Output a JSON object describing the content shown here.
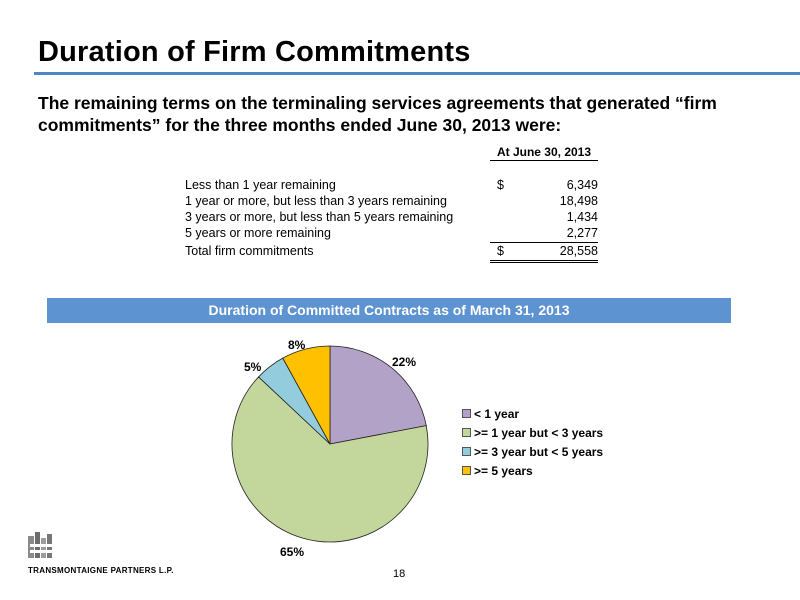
{
  "title": "Duration of Firm Commitments",
  "intro": "The remaining terms on the terminaling services agreements that generated “firm commitments” for the three months ended June 30, 2013 were:",
  "table": {
    "column_header": "At June 30, 2013",
    "rows": [
      {
        "label": "Less than 1 year remaining",
        "currency": "$",
        "value": "6,349"
      },
      {
        "label": "1 year or more, but less than 3 years remaining",
        "currency": "",
        "value": "18,498"
      },
      {
        "label": "3 years or more, but less than 5 years remaining",
        "currency": "",
        "value": "1,434"
      },
      {
        "label": "5 years or more remaining",
        "currency": "",
        "value": "2,277"
      },
      {
        "label": "Total firm commitments",
        "currency": "$",
        "value": "28,558"
      }
    ]
  },
  "chart_banner": "Duration of Committed Contracts as of  March 31, 2013",
  "chart_data": {
    "type": "pie",
    "categories": [
      "< 1 year",
      ">= 1 year but < 3 years",
      ">= 3 year but < 5 years",
      ">= 5 years"
    ],
    "values": [
      22,
      65,
      5,
      8
    ],
    "data_labels": [
      "22%",
      "65%",
      "5%",
      "8%"
    ],
    "colors": [
      "#b3a2c7",
      "#c3d69b",
      "#93cddd",
      "#ffc000"
    ],
    "legend_position": "right"
  },
  "footer": {
    "company": "TRANSMONTAIGNE PARTNERS L.P.",
    "page_number": "18"
  }
}
